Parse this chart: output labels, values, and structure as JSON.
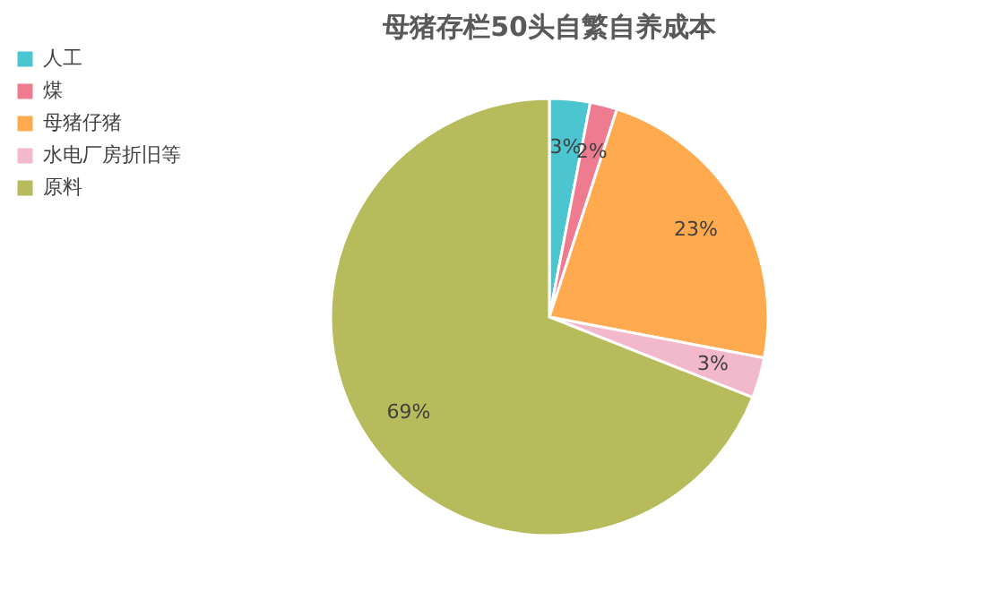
{
  "chart_data": {
    "type": "pie",
    "title": "母猪存栏50头自繁自养成本",
    "categories": [
      "人工",
      "煤",
      "母猪仔猪",
      "水电厂房折旧等",
      "原料"
    ],
    "values": [
      3,
      2,
      23,
      3,
      69
    ],
    "colors": [
      "#4bc5cf",
      "#ee7b8f",
      "#ffaa4f",
      "#f2b8cc",
      "#b8bb5c"
    ],
    "value_labels": [
      "3%",
      "2%",
      "23%",
      "3%",
      "69%"
    ],
    "legend": "left"
  }
}
